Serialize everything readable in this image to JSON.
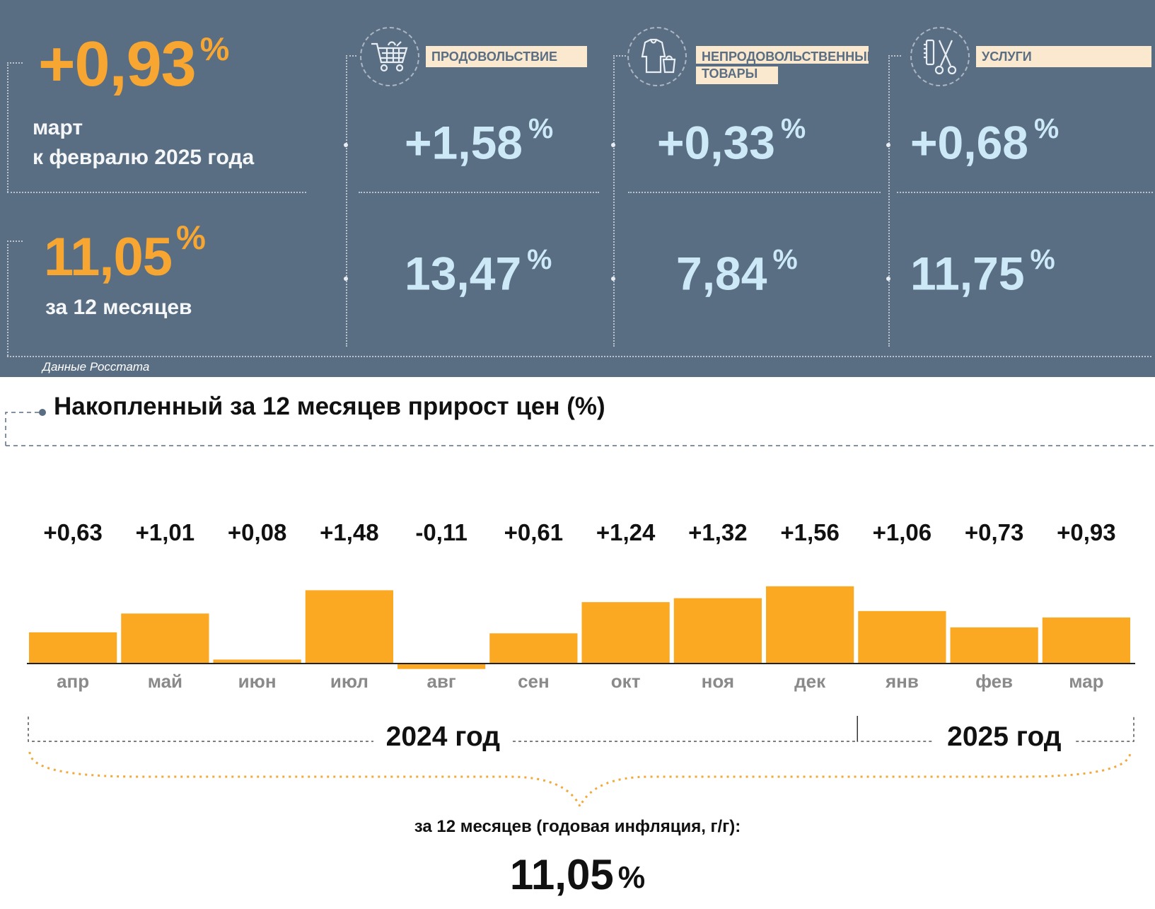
{
  "header": {
    "monthly": {
      "value": "+0,93",
      "unit": "%",
      "line1": "март",
      "line2": "к февралю 2025 года"
    },
    "annual": {
      "value": "11,05",
      "unit": "%",
      "label": "за 12 месяцев"
    },
    "categories": [
      {
        "icon": "shopping-cart-icon",
        "label_line1": "ПРОДОВОЛЬСТВИЕ",
        "label_line2": "",
        "monthly": "+1,58",
        "annual": "13,47",
        "unit": "%"
      },
      {
        "icon": "clothes-bag-icon",
        "label_line1": "НЕПРОДОВОЛЬСТВЕННЫЕ",
        "label_line2": "ТОВАРЫ",
        "monthly": "+0,33",
        "annual": "7,84",
        "unit": "%"
      },
      {
        "icon": "comb-scissors-icon",
        "label_line1": "УСЛУГИ",
        "label_line2": "",
        "monthly": "+0,68",
        "annual": "11,75",
        "unit": "%"
      }
    ],
    "source": "Данные Росстата"
  },
  "chart_data": {
    "type": "bar",
    "title": "Накопленный за 12 месяцев прирост цен (%)",
    "categories": [
      "апр",
      "май",
      "июн",
      "июл",
      "авг",
      "сен",
      "окт",
      "ноя",
      "дек",
      "янв",
      "фев",
      "мар"
    ],
    "values": [
      0.63,
      1.01,
      0.08,
      1.48,
      -0.11,
      0.61,
      1.24,
      1.32,
      1.56,
      1.06,
      0.73,
      0.93
    ],
    "value_labels": [
      "+0,63",
      "+1,01",
      "+0,08",
      "+1,48",
      "-0,11",
      "+0,61",
      "+1,24",
      "+1,32",
      "+1,56",
      "+1,06",
      "+0,73",
      "+0,93"
    ],
    "years": [
      {
        "label": "2024 год",
        "months": 9
      },
      {
        "label": "2025 год",
        "months": 3
      }
    ],
    "bar_color": "#fba822",
    "annual_caption": "за 12 месяцев (годовая инфляция, г/г):",
    "annual_value": "11,05",
    "annual_unit": "%"
  }
}
